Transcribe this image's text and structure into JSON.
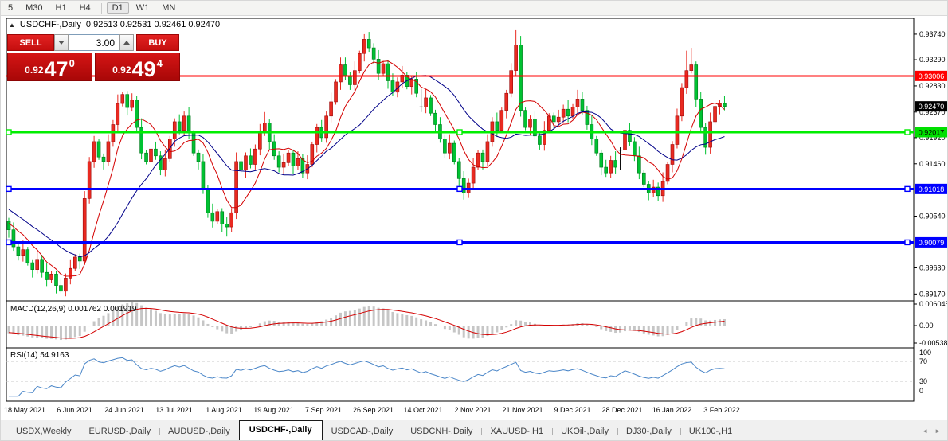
{
  "toolbar": {
    "items": [
      "5",
      "M30",
      "H1",
      "H4",
      "|",
      "D1",
      "W1",
      "MN",
      "|"
    ],
    "active": "D1"
  },
  "chart": {
    "title_toggle": "▲",
    "symbol_label": "USDCHF-,Daily",
    "ohlc_label": "0.92513 0.92531 0.92461 0.92470",
    "trade_panel": {
      "sell_label": "SELL",
      "buy_label": "BUY",
      "volume": "3.00",
      "sell_price": {
        "prefix": "0.92",
        "big": "47",
        "sup": "0"
      },
      "buy_price": {
        "prefix": "0.92",
        "big": "49",
        "sup": "4"
      }
    },
    "macd_label": "MACD(12,26,9)",
    "macd_values": "0.001762 0.001919",
    "rsi_label": "RSI(14)",
    "rsi_value": "54.9163"
  },
  "chart_data": {
    "type": "candlestick",
    "symbol": "USDCHF-",
    "timeframe": "Daily",
    "ohlc_current": {
      "open": 0.92513,
      "high": 0.92531,
      "low": 0.92461,
      "close": 0.9247
    },
    "last_price": 0.9247,
    "price_range": {
      "min": 0.8906,
      "max": 0.9394
    },
    "up_color": "#e92a21",
    "up_stroke": "#9b0b0b",
    "down_color": "#00c232",
    "down_stroke": "#00771c",
    "y_ticks": [
      "0.93740",
      "0.93290",
      "0.92830",
      "0.92370",
      "0.91920",
      "0.91460",
      "0.90540",
      "0.89630",
      "0.89170"
    ],
    "price_badges": [
      {
        "value": "0.93006",
        "bg": "#ff0000",
        "fg": "#ffffff"
      },
      {
        "value": "0.92470",
        "bg": "#000000",
        "fg": "#ffffff"
      },
      {
        "value": "0.92017",
        "bg": "#00e000",
        "fg": "#000000"
      },
      {
        "value": "0.91018",
        "bg": "#0000ff",
        "fg": "#ffffff"
      },
      {
        "value": "0.90079",
        "bg": "#0000ff",
        "fg": "#ffffff"
      }
    ],
    "h_lines": [
      {
        "price": 0.93006,
        "color": "#ff0000",
        "width": 2,
        "handles": false
      },
      {
        "price": 0.92017,
        "color": "#00ee00",
        "width": 3,
        "handles": true
      },
      {
        "price": 0.91018,
        "color": "#0000ff",
        "width": 3,
        "handles": true
      },
      {
        "price": 0.90079,
        "color": "#0000ff",
        "width": 3,
        "handles": true
      }
    ],
    "x_labels": [
      "18 May 2021",
      "6 Jun 2021",
      "24 Jun 2021",
      "13 Jul 2021",
      "1 Aug 2021",
      "19 Aug 2021",
      "7 Sep 2021",
      "26 Sep 2021",
      "14 Oct 2021",
      "2 Nov 2021",
      "21 Nov 2021",
      "9 Dec 2021",
      "28 Dec 2021",
      "16 Jan 2022",
      "3 Feb 2022"
    ],
    "open_first": 0.9045,
    "pre_history": [
      0.9125,
      0.9118,
      0.911,
      0.9104,
      0.9098,
      0.909,
      0.9084,
      0.9078,
      0.9072,
      0.9066,
      0.906,
      0.9056,
      0.9052,
      0.9049,
      0.9047,
      0.9045,
      0.9043,
      0.9041,
      0.9039,
      0.9037
    ],
    "closes": [
      0.903,
      0.9,
      0.8985,
      0.8995,
      0.8972,
      0.896,
      0.8978,
      0.8955,
      0.8942,
      0.8952,
      0.8932,
      0.8922,
      0.8945,
      0.8962,
      0.8982,
      0.8975,
      0.9085,
      0.915,
      0.9185,
      0.9158,
      0.915,
      0.9185,
      0.9215,
      0.9252,
      0.9268,
      0.9245,
      0.9258,
      0.921,
      0.9165,
      0.915,
      0.9172,
      0.916,
      0.9135,
      0.9155,
      0.919,
      0.922,
      0.9205,
      0.923,
      0.92,
      0.9165,
      0.915,
      0.91,
      0.906,
      0.9045,
      0.9062,
      0.904,
      0.9035,
      0.906,
      0.915,
      0.9135,
      0.916,
      0.9145,
      0.9172,
      0.92,
      0.9218,
      0.9185,
      0.916,
      0.914,
      0.9148,
      0.9165,
      0.9142,
      0.9155,
      0.913,
      0.9145,
      0.918,
      0.921,
      0.9192,
      0.923,
      0.9255,
      0.929,
      0.932,
      0.93,
      0.9285,
      0.931,
      0.934,
      0.9365,
      0.935,
      0.933,
      0.9305,
      0.9322,
      0.9292,
      0.9272,
      0.929,
      0.9302,
      0.9282,
      0.9295,
      0.927,
      0.9246,
      0.9262,
      0.9235,
      0.9215,
      0.919,
      0.9165,
      0.9182,
      0.915,
      0.912,
      0.9095,
      0.9112,
      0.914,
      0.9165,
      0.915,
      0.9185,
      0.922,
      0.9205,
      0.924,
      0.927,
      0.931,
      0.9355,
      0.924,
      0.921,
      0.9225,
      0.9195,
      0.918,
      0.9205,
      0.923,
      0.922,
      0.9228,
      0.9242,
      0.923,
      0.9246,
      0.926,
      0.924,
      0.9215,
      0.919,
      0.9165,
      0.914,
      0.913,
      0.9152,
      0.914,
      0.917,
      0.9205,
      0.9185,
      0.916,
      0.913,
      0.911,
      0.9095,
      0.9105,
      0.909,
      0.9115,
      0.9145,
      0.918,
      0.923,
      0.928,
      0.931,
      0.932,
      0.926,
      0.921,
      0.9175,
      0.922,
      0.9247,
      0.9252,
      0.9247
    ],
    "special_highs": {
      "18": 0.9195,
      "24": 0.9273,
      "26": 0.927,
      "54": 0.9237,
      "70": 0.9333,
      "75": 0.9374,
      "107": 0.9381,
      "120": 0.9276,
      "130": 0.9222,
      "143": 0.9345,
      "144": 0.935
    },
    "special_lows": {
      "11": 0.8918,
      "46": 0.9018,
      "96": 0.9083,
      "135": 0.9082,
      "137": 0.908,
      "147": 0.9162
    },
    "doji_indices": [
      87,
      129
    ],
    "moving_averages": [
      {
        "name": "fast-ma",
        "period": 8,
        "color": "#d40000"
      },
      {
        "name": "slow-ma",
        "period": 20,
        "color": "#000089"
      }
    ],
    "macd": {
      "params": [
        12,
        26,
        9
      ],
      "current": [
        0.001762,
        0.001919
      ],
      "axis": [
        "0.006045",
        "0.00",
        "-0.005381"
      ],
      "hist_color": "#c6c6c6",
      "signal_color": "#d40000"
    },
    "rsi": {
      "period": 14,
      "current": 54.9163,
      "axis": [
        "100",
        "70",
        "30",
        "0"
      ],
      "levels": [
        70,
        30
      ],
      "color": "#4a86c8"
    }
  },
  "tabbar": {
    "tabs": [
      "USDX,Weekly",
      "EURUSD-,Daily",
      "AUDUSD-,Daily",
      "USDCHF-,Daily",
      "USDCAD-,Daily",
      "USDCNH-,Daily",
      "XAUUSD-,H1",
      "UKOil-,Daily",
      "DJ30-,Daily",
      "UK100-,H1"
    ],
    "active_index": 3,
    "arrows": [
      "◄",
      "►"
    ]
  }
}
